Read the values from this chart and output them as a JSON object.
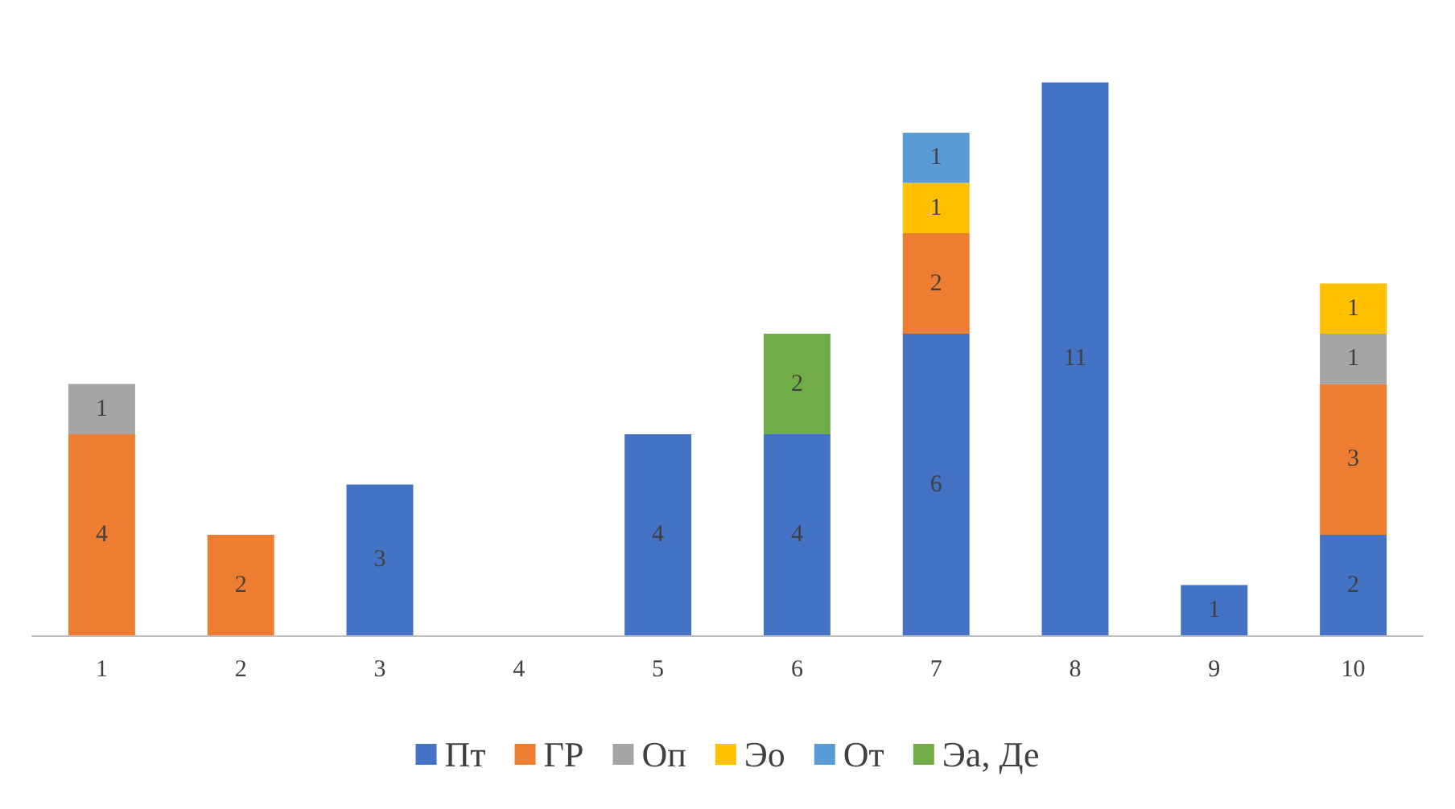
{
  "chart_data": {
    "type": "bar",
    "stacked": true,
    "data_labels": true,
    "grid": false,
    "legend": "bottom",
    "categories": [
      "1",
      "2",
      "3",
      "4",
      "5",
      "6",
      "7",
      "8",
      "9",
      "10"
    ],
    "series": [
      {
        "name": "Пт",
        "color": "#4472c4",
        "values": [
          null,
          null,
          3,
          null,
          4,
          4,
          6,
          11,
          1,
          2
        ]
      },
      {
        "name": "ГР",
        "color": "#ed7d31",
        "values": [
          4,
          2,
          null,
          null,
          null,
          null,
          2,
          null,
          null,
          3
        ]
      },
      {
        "name": "Оп",
        "color": "#a5a5a5",
        "values": [
          1,
          null,
          null,
          null,
          null,
          null,
          null,
          null,
          null,
          1
        ]
      },
      {
        "name": "Эо",
        "color": "#ffc000",
        "values": [
          null,
          null,
          null,
          null,
          null,
          null,
          1,
          null,
          null,
          1
        ]
      },
      {
        "name": "От",
        "color": "#5b9bd5",
        "values": [
          null,
          null,
          null,
          null,
          null,
          null,
          1,
          null,
          null,
          null
        ]
      },
      {
        "name": "Эа, Де",
        "color": "#70ad47",
        "values": [
          null,
          null,
          null,
          null,
          null,
          2,
          null,
          null,
          null,
          null
        ]
      }
    ]
  }
}
